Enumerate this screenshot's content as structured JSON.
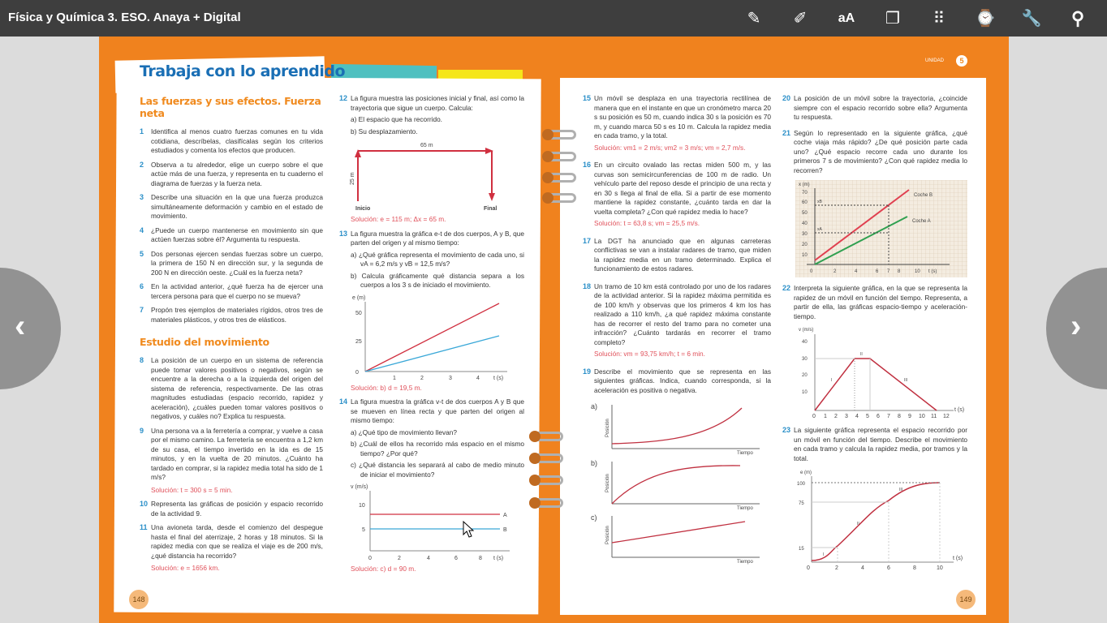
{
  "app": {
    "title": "Física y Química 3. ESO. Anaya + Digital"
  },
  "toolbar": [
    {
      "icon": "pencil-outline-icon",
      "glyph": "✎"
    },
    {
      "icon": "marker-icon",
      "glyph": "✐"
    },
    {
      "icon": "font-size-icon",
      "glyph": "aA"
    },
    {
      "icon": "notes-clip-icon",
      "glyph": "❐"
    },
    {
      "icon": "grid-icon",
      "glyph": "⠿"
    },
    {
      "icon": "download-device-icon",
      "glyph": "⌚"
    },
    {
      "icon": "wrench-icon",
      "glyph": "🔧"
    },
    {
      "icon": "search-icon",
      "glyph": "⚲"
    }
  ],
  "nav": {
    "prev": "‹",
    "next": "›"
  },
  "colors": {
    "orange": "#f0821e",
    "blue": "#1a6fb5",
    "solution": "#e0505a",
    "red_line": "#d03040",
    "blue_line": "#3aa8d8",
    "green_line": "#30a050"
  },
  "left_page": {
    "title": "Trabaja con lo aprendido",
    "page_number": "148",
    "section1": "Las fuerzas y sus efectos. Fuerza neta",
    "section2": "Estudio del movimiento",
    "items": [
      {
        "n": "1",
        "text": "Identifica al menos cuatro fuerzas comunes en tu vida cotidiana, descríbelas, clasifícalas según los criterios estudiados y comenta los efectos que producen."
      },
      {
        "n": "2",
        "text": "Observa a tu alrededor, elige un cuerpo sobre el que actúe más de una fuerza, y representa en tu cuaderno el diagrama de fuerzas y la fuerza neta."
      },
      {
        "n": "3",
        "text": "Describe una situación en la que una fuerza produzca simultáneamente deformación y cambio en el estado de movimiento."
      },
      {
        "n": "4",
        "text": "¿Puede un cuerpo mantenerse en movimiento sin que actúen fuerzas sobre él? Argumenta tu respuesta."
      },
      {
        "n": "5",
        "text": "Dos personas ejercen sendas fuerzas sobre un cuerpo, la primera de 150 N en dirección sur, y la segunda de 200 N en dirección oeste. ¿Cuál es la fuerza neta?"
      },
      {
        "n": "6",
        "text": "En la actividad anterior, ¿qué fuerza ha de ejercer una tercera persona para que el cuerpo no se mueva?"
      },
      {
        "n": "7",
        "text": "Propón tres ejemplos de materiales rígidos, otros tres de materiales plásticos, y otros tres de elásticos."
      },
      {
        "n": "8",
        "text": "La posición de un cuerpo en un sistema de referencia puede tomar valores positivos o negativos, según se encuentre a la derecha o a la izquierda del origen del sistema de referencia, respectivamente. De las otras magnitudes estudiadas (espacio recorrido, rapidez y aceleración), ¿cuáles pueden tomar valores positivos o negativos, y cuáles no? Explica tu respuesta."
      },
      {
        "n": "9",
        "text": "Una persona va a la ferretería a comprar, y vuelve a casa por el mismo camino. La ferretería se encuentra a 1,2 km de su casa, el tiempo invertido en la ida es de 15 minutos, y en la vuelta de 20 minutos. ¿Cuánto ha tardado en comprar, si la rapidez media total ha sido de 1 m/s?",
        "solution": "Solución: t = 300 s = 5 min."
      },
      {
        "n": "10",
        "text": "Representa las gráficas de posición y espacio recorrido de la actividad 9."
      },
      {
        "n": "11",
        "text": "Una avioneta tarda, desde el comienzo del despegue hasta el final del aterrizaje, 2 horas y 18 minutos. Si la rapidez media con que se realiza el viaje es de 200 m/s, ¿qué distancia ha recorrido?",
        "solution": "Solución: e = 1656 km."
      },
      {
        "n": "12",
        "text": "La figura muestra las posiciones inicial y final, así como la trayectoria que sigue un cuerpo. Calcula:",
        "a": "a) El espacio que ha recorrido.",
        "b": "b) Su desplazamiento.",
        "solution": "Solución: e = 115 m; Δx = 65 m.",
        "fig": {
          "top": "65 m",
          "side": "25 m",
          "start": "Inicio",
          "end": "Final"
        }
      },
      {
        "n": "13",
        "text": "La figura muestra la gráfica e-t de dos cuerpos, A y B, que parten del origen y al mismo tiempo:",
        "a": "a) ¿Qué gráfica representa el movimiento de cada uno, si vA = 6,2 m/s y vB = 12,5 m/s?",
        "b": "b) Calcula gráficamente qué distancia separa a los cuerpos a los 3 s de iniciado el movimiento.",
        "solution": "Solución: b) d = 19,5 m.",
        "fig": {
          "ylabel": "e (m)",
          "xlabel": "t (s)",
          "yticks": [
            "0",
            "25",
            "50"
          ],
          "xticks": [
            "1",
            "2",
            "3",
            "4"
          ]
        }
      },
      {
        "n": "14",
        "text": "La figura muestra la gráfica v-t de dos cuerpos A y B que se mueven en línea recta y que parten del origen al mismo tiempo:",
        "a": "a) ¿Qué tipo de movimiento llevan?",
        "b": "b) ¿Cuál de ellos ha recorrido más espacio en el mismo tiempo? ¿Por qué?",
        "c": "c) ¿Qué distancia les separará al cabo de medio minuto de iniciar el movimiento?",
        "solution": "Solución: c) d = 90 m.",
        "fig": {
          "ylabel": "v (m/s)",
          "xlabel": "t (s)",
          "yticks": [
            "5",
            "10"
          ],
          "xticks": [
            "0",
            "2",
            "4",
            "6",
            "8"
          ],
          "series": [
            "A",
            "B"
          ]
        }
      }
    ]
  },
  "right_page": {
    "unit_label": "UNIDAD",
    "unit_number": "5",
    "page_number": "149",
    "items": [
      {
        "n": "15",
        "text": "Un móvil se desplaza en una trayectoria rectilínea de manera que en el instante en que un cronómetro marca 20 s su posición es 50 m, cuando indica 30 s la posición es 70 m, y cuando marca 50 s es 10 m. Calcula la rapidez media en cada tramo, y la total.",
        "solution": "Solución: vm1 = 2 m/s; vm2 = 3 m/s; vm = 2,7 m/s."
      },
      {
        "n": "16",
        "text": "En un circuito ovalado las rectas miden 500 m, y las curvas son semicircunferencias de 100 m de radio. Un vehículo parte del reposo desde el principio de una recta y en 30 s llega al final de ella. Si a partir de ese momento mantiene la rapidez constante, ¿cuánto tarda en dar la vuelta completa? ¿Con qué rapidez media lo hace?",
        "solution": "Solución: t = 63,8 s; vm = 25,5 m/s."
      },
      {
        "n": "17",
        "text": "La DGT ha anunciado que en algunas carreteras conflictivas se van a instalar radares de tramo, que miden la rapidez media en un tramo determinado. Explica el funcionamiento de estos radares."
      },
      {
        "n": "18",
        "text": "Un tramo de 10 km está controlado por uno de los radares de la actividad anterior. Si la rapidez máxima permitida es de 100 km/h y observas que los primeros 4 km los has realizado a 110 km/h, ¿a qué rapidez máxima constante has de recorrer el resto del tramo para no cometer una infracción? ¿Cuánto tardarás en recorrer el tramo completo?",
        "solution": "Solución: vm = 93,75 km/h; t = 6 min."
      },
      {
        "n": "19",
        "text": "Describe el movimiento que se representa en las siguientes gráficas. Indica, cuando corresponda, si la aceleración es positiva o negativa.",
        "graphs": [
          "a)",
          "b)",
          "c)"
        ],
        "ylabel": "Posición",
        "xlabel": "Tiempo"
      },
      {
        "n": "20",
        "text": "La posición de un móvil sobre la trayectoria, ¿coincide siempre con el espacio recorrido sobre ella? Argumenta tu respuesta."
      },
      {
        "n": "21",
        "text": "Según lo representado en la siguiente gráfica, ¿qué coche viaja más rápido? ¿De qué posición parte cada uno? ¿Qué espacio recorre cada uno durante los primeros 7 s de movimiento? ¿Con qué rapidez media lo recorren?",
        "fig": {
          "ylabel": "x (m)",
          "xlabel": "t (s)",
          "yticks": [
            "10",
            "20",
            "30",
            "40",
            "50",
            "60",
            "70"
          ],
          "xticks": [
            "0",
            "2",
            "4",
            "6",
            "7",
            "8",
            "10"
          ],
          "series": [
            "Coche B",
            "Coche A"
          ],
          "marks": [
            "xB",
            "xA"
          ]
        }
      },
      {
        "n": "22",
        "text": "Interpreta la siguiente gráfica, en la que se representa la rapidez de un móvil en función del tiempo. Representa, a partir de ella, las gráficas espacio-tiempo y aceleración-tiempo.",
        "fig": {
          "ylabel": "v (m/s)",
          "xlabel": "t (s)",
          "yticks": [
            "10",
            "20",
            "30",
            "40"
          ],
          "xticks": [
            "0",
            "1",
            "2",
            "3",
            "4",
            "5",
            "6",
            "7",
            "8",
            "9",
            "10",
            "11",
            "12"
          ],
          "segments": [
            "I",
            "II",
            "III"
          ]
        }
      },
      {
        "n": "23",
        "text": "La siguiente gráfica representa el espacio recorrido por un móvil en función del tiempo. Describe el movimiento en cada tramo y calcula la rapidez media, por tramos y la total.",
        "fig": {
          "ylabel": "e (m)",
          "xlabel": "t (s)",
          "yticks": [
            "15",
            "75",
            "100"
          ],
          "xticks": [
            "0",
            "2",
            "4",
            "6",
            "8",
            "10"
          ],
          "segments": [
            "I",
            "II",
            "III"
          ]
        }
      }
    ]
  }
}
